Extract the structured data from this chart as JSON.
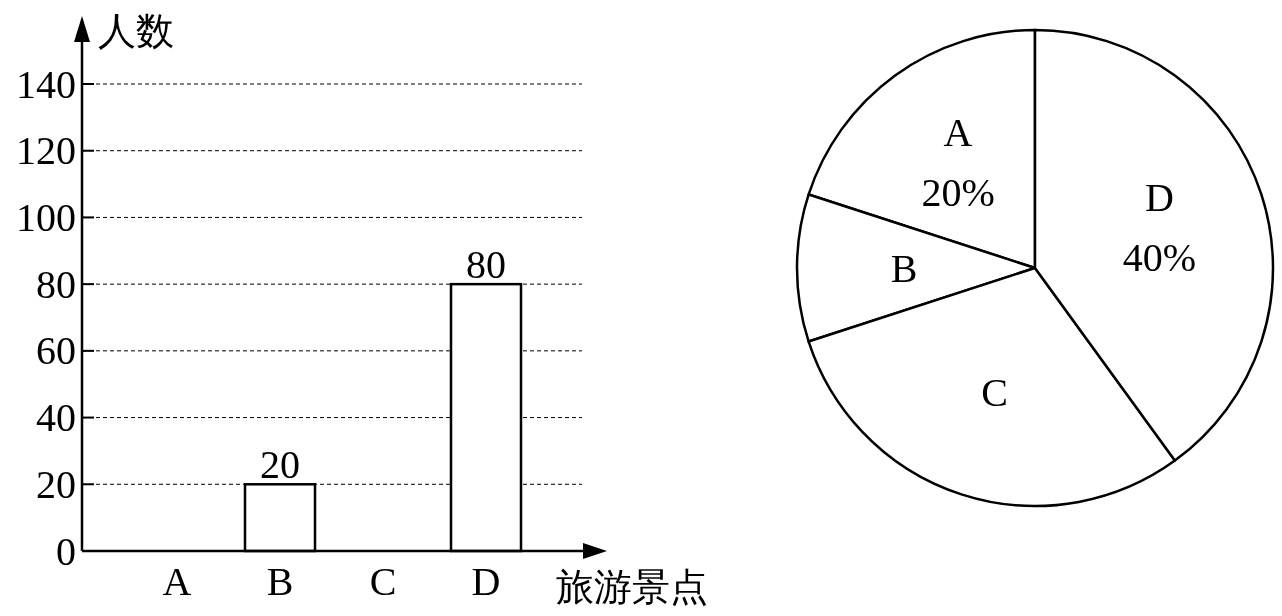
{
  "chart_data": [
    {
      "type": "bar",
      "xlabel": "旅游景点",
      "ylabel": "人数",
      "categories": [
        "A",
        "B",
        "C",
        "D"
      ],
      "values": [
        null,
        20,
        null,
        80
      ],
      "color": "#ffffff",
      "ylim": [
        0,
        140
      ],
      "yticks": [
        0,
        20,
        40,
        60,
        80,
        100,
        120,
        140
      ],
      "grid": "y",
      "data_labels": true
    },
    {
      "type": "pie",
      "categories": [
        "A",
        "B",
        "C",
        "D"
      ],
      "values": [
        20,
        10,
        30,
        40
      ],
      "colors": [
        "#ffffff",
        "#ffffff",
        "#ffffff",
        "#ffffff"
      ],
      "value_labels": [
        "20%",
        null,
        null,
        "40%"
      ]
    }
  ]
}
